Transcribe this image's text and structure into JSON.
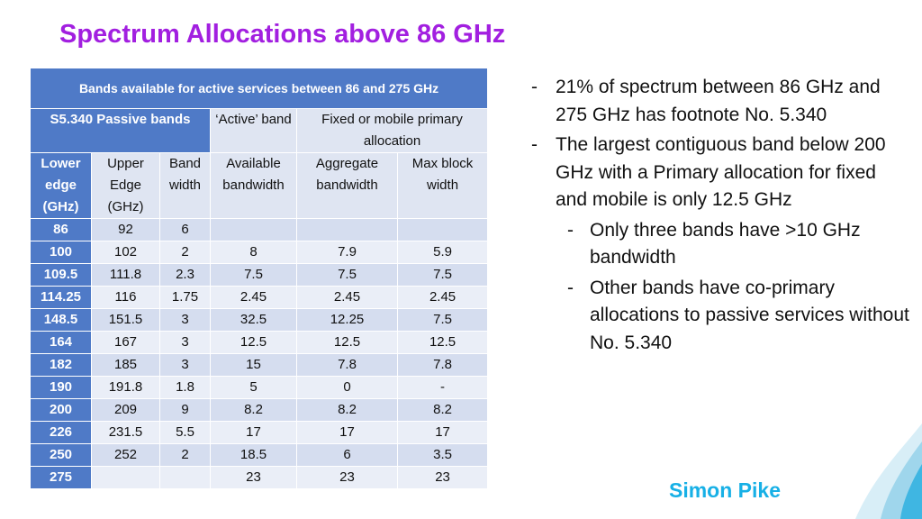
{
  "title": "Spectrum Allocations above 86 GHz",
  "table": {
    "caption": "Bands available for active services between 86 and 275 GHz",
    "group_passive": "S5.340 Passive bands",
    "group_active": "‘Active’ band",
    "group_fixed": "Fixed or mobile primary allocation",
    "columns": [
      "Lower edge (GHz)",
      "Upper Edge (GHz)",
      "Band width",
      "Available bandwidth",
      "Aggregate bandwidth",
      "Max block width"
    ],
    "rows": [
      [
        "86",
        "92",
        "6",
        "",
        "",
        ""
      ],
      [
        "100",
        "102",
        "2",
        "8",
        "7.9",
        "5.9"
      ],
      [
        "109.5",
        "111.8",
        "2.3",
        "7.5",
        "7.5",
        "7.5"
      ],
      [
        "114.25",
        "116",
        "1.75",
        "2.45",
        "2.45",
        "2.45"
      ],
      [
        "148.5",
        "151.5",
        "3",
        "32.5",
        "12.25",
        "7.5"
      ],
      [
        "164",
        "167",
        "3",
        "12.5",
        "12.5",
        "12.5"
      ],
      [
        "182",
        "185",
        "3",
        "15",
        "7.8",
        "7.8"
      ],
      [
        "190",
        "191.8",
        "1.8",
        "5",
        "0",
        "-"
      ],
      [
        "200",
        "209",
        "9",
        "8.2",
        "8.2",
        "8.2"
      ],
      [
        "226",
        "231.5",
        "5.5",
        "17",
        "17",
        "17"
      ],
      [
        "250",
        "252",
        "2",
        "18.5",
        "6",
        "3.5"
      ],
      [
        "275",
        "",
        "",
        "23",
        "23",
        "23"
      ]
    ]
  },
  "bullets": [
    {
      "level": 1,
      "text": "21% of spectrum between 86 GHz and 275 GHz has footnote No. 5.340"
    },
    {
      "level": 1,
      "text": "The largest contiguous band below 200 GHz with a Primary allocation for fixed and mobile is only 12.5 GHz"
    },
    {
      "level": 2,
      "text": "Only three bands have >10 GHz bandwidth"
    },
    {
      "level": 2,
      "text": "Other bands have co-primary allocations to passive services without No. 5.340"
    }
  ],
  "bullet_marker": "-",
  "author": "Simon Pike",
  "colors": {
    "title": "#a21fe0",
    "header_blue": "#4f7ac7",
    "row_dark": "#d5ddef",
    "row_light": "#eaeef7",
    "author": "#17b0e6"
  }
}
